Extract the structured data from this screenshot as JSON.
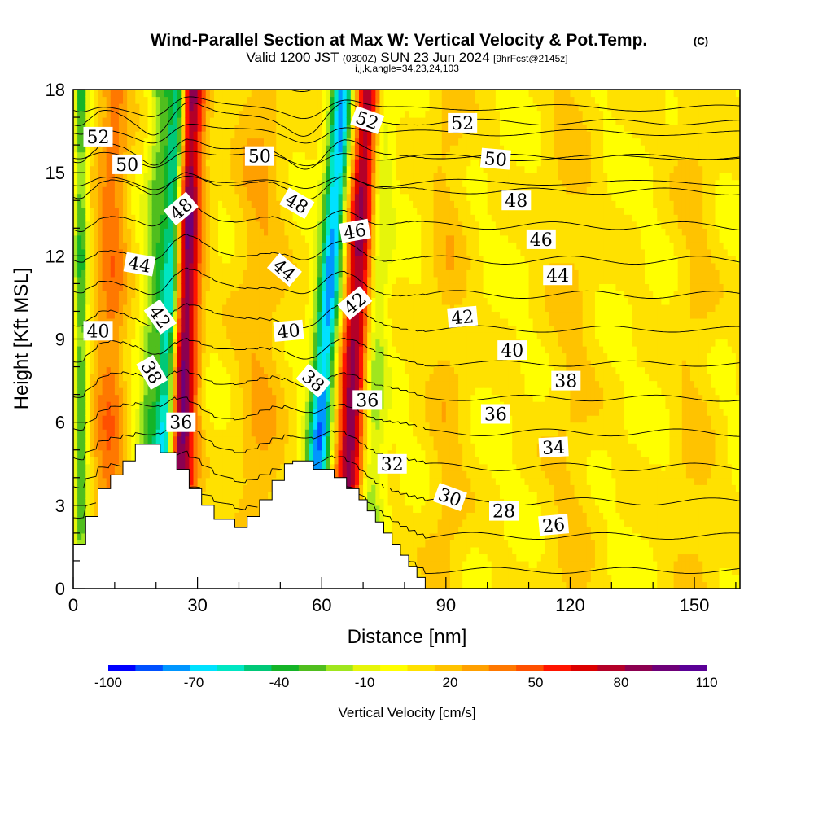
{
  "chart_data": {
    "type": "heatmap",
    "title": "Wind-Parallel Section at Max W: Vertical Velocity & Pot.Temp.",
    "title_mark": "(C)",
    "subtitle_valid": "Valid 1200 JST",
    "subtitle_utc": "(0300Z)",
    "subtitle_date": "SUN 23 Jun 2024",
    "subtitle_fcst": "[9hrFcst@2145z]",
    "subtitle_grid": "i,j,k,angle=34,23,24,103",
    "xlabel": "Distance [nm]",
    "ylabel": "Height [Kft MSL]",
    "xlim": [
      0,
      161
    ],
    "ylim": [
      0,
      18
    ],
    "x_ticks": [
      "0",
      "30",
      "60",
      "90",
      "120",
      "150"
    ],
    "y_ticks": [
      "0",
      "3",
      "6",
      "9",
      "12",
      "15",
      "18"
    ],
    "colorbar": {
      "label": "Vertical Velocity [cm/s]",
      "tick_labels": [
        "-100",
        "-70",
        "-40",
        "-10",
        "20",
        "50",
        "80",
        "110"
      ],
      "colors": [
        "#0000ff",
        "#0050ff",
        "#0096ff",
        "#00e1ff",
        "#00e6c3",
        "#00c878",
        "#14b428",
        "#50be1e",
        "#a0e61e",
        "#e6f50a",
        "#ffff00",
        "#ffe100",
        "#ffc300",
        "#ffa000",
        "#ff7800",
        "#ff5000",
        "#ff1400",
        "#dc0000",
        "#b40028",
        "#8c0050",
        "#6e0078",
        "#5a0096"
      ]
    },
    "terrain_kft": [
      [
        0,
        1.6
      ],
      [
        3,
        1.6
      ],
      [
        3,
        2.6
      ],
      [
        6,
        2.6
      ],
      [
        6,
        3.6
      ],
      [
        9,
        3.6
      ],
      [
        9,
        4.1
      ],
      [
        12,
        4.1
      ],
      [
        12,
        4.6
      ],
      [
        15,
        4.6
      ],
      [
        15,
        5.2
      ],
      [
        21,
        5.2
      ],
      [
        21,
        4.9
      ],
      [
        25,
        4.9
      ],
      [
        25,
        4.3
      ],
      [
        28,
        4.3
      ],
      [
        28,
        3.6
      ],
      [
        31,
        3.6
      ],
      [
        31,
        3.0
      ],
      [
        34,
        3.0
      ],
      [
        34,
        2.5
      ],
      [
        39,
        2.5
      ],
      [
        39,
        2.2
      ],
      [
        42,
        2.2
      ],
      [
        42,
        2.6
      ],
      [
        45,
        2.6
      ],
      [
        45,
        3.2
      ],
      [
        48,
        3.2
      ],
      [
        48,
        3.9
      ],
      [
        51,
        3.9
      ],
      [
        51,
        4.5
      ],
      [
        53,
        4.5
      ],
      [
        53,
        4.6
      ],
      [
        58,
        4.6
      ],
      [
        58,
        4.3
      ],
      [
        63,
        4.3
      ],
      [
        63,
        4.0
      ],
      [
        66,
        4.0
      ],
      [
        66,
        3.6
      ],
      [
        69,
        3.6
      ],
      [
        69,
        3.2
      ],
      [
        71,
        3.2
      ],
      [
        71,
        2.8
      ],
      [
        73,
        2.8
      ],
      [
        73,
        2.4
      ],
      [
        75,
        2.4
      ],
      [
        75,
        2.0
      ],
      [
        77,
        2.0
      ],
      [
        77,
        1.6
      ],
      [
        79,
        1.6
      ],
      [
        79,
        1.2
      ],
      [
        81,
        1.2
      ],
      [
        81,
        0.8
      ],
      [
        83,
        0.8
      ],
      [
        83,
        0.4
      ],
      [
        85,
        0.4
      ],
      [
        85,
        0.0
      ]
    ],
    "w_features": [
      {
        "x0": 25,
        "slope": 0.18,
        "width": 3.5,
        "amp": 95
      },
      {
        "x0": 21,
        "slope": 0.25,
        "width": 2.2,
        "amp": -90
      },
      {
        "x0": 17,
        "slope": 0.25,
        "width": 2.8,
        "amp": -35
      },
      {
        "x0": 65,
        "slope": 0.35,
        "width": 3.5,
        "amp": 85
      },
      {
        "x0": 57,
        "slope": 0.45,
        "width": 2.8,
        "amp": -85
      },
      {
        "x0": 71,
        "slope": 0.2,
        "width": 3.0,
        "amp": -30
      },
      {
        "x0": 8,
        "slope": 0.1,
        "width": 4.0,
        "amp": 35
      },
      {
        "x0": 2,
        "slope": 0.0,
        "width": 1.5,
        "amp": -40
      },
      {
        "x0": 45,
        "slope": 0.0,
        "width": 6.0,
        "amp": 20
      },
      {
        "x0": 90,
        "slope": 0.05,
        "width": 5.0,
        "amp": 14
      },
      {
        "x0": 120,
        "slope": 0.0,
        "width": 6.0,
        "amp": 12
      },
      {
        "x0": 150,
        "slope": 0.0,
        "width": 5.0,
        "amp": 12
      }
    ],
    "theta_contours": [
      "26",
      "28",
      "30",
      "32",
      "34",
      "36",
      "38",
      "40",
      "42",
      "44",
      "46",
      "48",
      "50",
      "52"
    ],
    "contour_labels": [
      {
        "text": "52",
        "x": 6,
        "y": 16.3,
        "angle": 0
      },
      {
        "text": "50",
        "x": 13,
        "y": 15.3,
        "angle": 0
      },
      {
        "text": "48",
        "x": 26,
        "y": 13.7,
        "angle": -40
      },
      {
        "text": "44",
        "x": 16,
        "y": 11.7,
        "angle": 10
      },
      {
        "text": "42",
        "x": 21,
        "y": 9.8,
        "angle": 55
      },
      {
        "text": "40",
        "x": 6,
        "y": 9.3,
        "angle": 0
      },
      {
        "text": "38",
        "x": 19,
        "y": 7.8,
        "angle": 60
      },
      {
        "text": "36",
        "x": 26,
        "y": 6.0,
        "angle": 0
      },
      {
        "text": "50",
        "x": 45,
        "y": 15.6,
        "angle": 0
      },
      {
        "text": "48",
        "x": 54,
        "y": 13.9,
        "angle": 30
      },
      {
        "text": "44",
        "x": 51,
        "y": 11.5,
        "angle": 40
      },
      {
        "text": "40",
        "x": 52,
        "y": 9.3,
        "angle": -5
      },
      {
        "text": "38",
        "x": 58,
        "y": 7.5,
        "angle": 40
      },
      {
        "text": "52",
        "x": 71,
        "y": 16.9,
        "angle": 20
      },
      {
        "text": "46",
        "x": 68,
        "y": 12.9,
        "angle": -10
      },
      {
        "text": "42",
        "x": 68,
        "y": 10.3,
        "angle": -40
      },
      {
        "text": "36",
        "x": 71,
        "y": 6.8,
        "angle": 0
      },
      {
        "text": "32",
        "x": 77,
        "y": 4.5,
        "angle": 0
      },
      {
        "text": "30",
        "x": 91,
        "y": 3.3,
        "angle": 20
      },
      {
        "text": "28",
        "x": 104,
        "y": 2.8,
        "angle": 0
      },
      {
        "text": "26",
        "x": 116,
        "y": 2.3,
        "angle": -5
      },
      {
        "text": "52",
        "x": 94,
        "y": 16.8,
        "angle": 0
      },
      {
        "text": "50",
        "x": 102,
        "y": 15.5,
        "angle": 5
      },
      {
        "text": "48",
        "x": 107,
        "y": 14.0,
        "angle": 0
      },
      {
        "text": "46",
        "x": 113,
        "y": 12.6,
        "angle": 0
      },
      {
        "text": "44",
        "x": 117,
        "y": 11.3,
        "angle": 0
      },
      {
        "text": "42",
        "x": 94,
        "y": 9.8,
        "angle": -5
      },
      {
        "text": "40",
        "x": 106,
        "y": 8.6,
        "angle": 0
      },
      {
        "text": "38",
        "x": 119,
        "y": 7.5,
        "angle": 0
      },
      {
        "text": "36",
        "x": 102,
        "y": 6.3,
        "angle": 0
      },
      {
        "text": "34",
        "x": 116,
        "y": 5.1,
        "angle": -3
      }
    ]
  }
}
